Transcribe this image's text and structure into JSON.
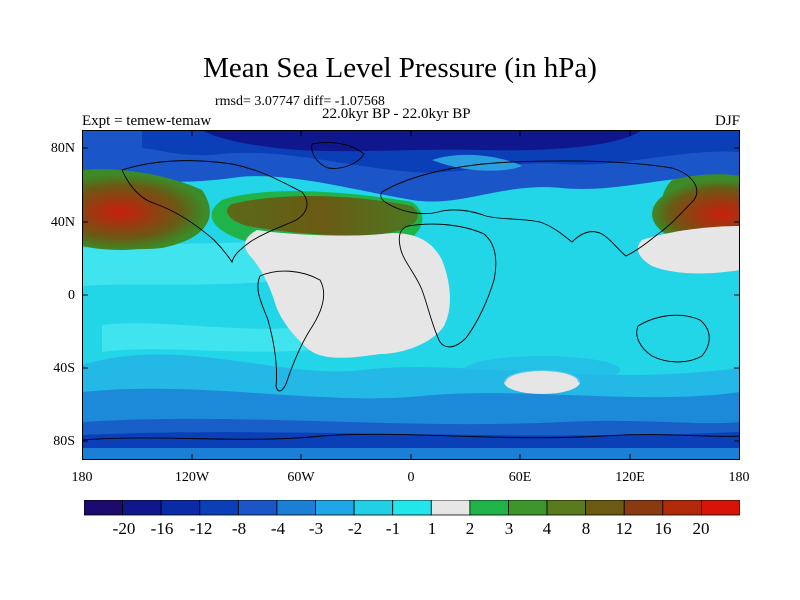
{
  "title": "Mean Sea Level Pressure (in hPa)",
  "stats": "rmsd= 3.07747 diff= -1.07568",
  "period": "22.0kyr BP - 22.0kyr BP",
  "experiment": "Expt = temew-temaw",
  "season": "DJF",
  "axes": {
    "lat_ticks": [
      "80N",
      "40N",
      "0",
      "40S",
      "80S"
    ],
    "lon_ticks": [
      "180",
      "120W",
      "60W",
      "0",
      "60E",
      "120E",
      "180"
    ]
  },
  "colorbar": {
    "labels": [
      "-20",
      "-16",
      "-12",
      "-8",
      "-4",
      "-3",
      "-2",
      "-1",
      "1",
      "2",
      "3",
      "4",
      "8",
      "12",
      "16",
      "20"
    ],
    "colors": [
      "#1c0a6e",
      "#10178c",
      "#0a2aa6",
      "#0a3fb8",
      "#1a56c8",
      "#1c7fd6",
      "#1fa6e6",
      "#23cfe6",
      "#22e6ec",
      "#e6e6e6",
      "#20b34a",
      "#3c962c",
      "#5a7a1e",
      "#6a5a14",
      "#8a3a10",
      "#b02a0a",
      "#d8140a"
    ]
  },
  "chart_data": {
    "type": "heatmap",
    "title": "Mean Sea Level Pressure (in hPa)",
    "subtitle": "22.0kyr BP - 22.0kyr BP",
    "variable": "MSLP difference",
    "units": "hPa",
    "contour_levels": [
      -20,
      -16,
      -12,
      -8,
      -4,
      -3,
      -2,
      -1,
      1,
      2,
      3,
      4,
      8,
      12,
      16,
      20
    ],
    "xlim": [
      -180,
      180
    ],
    "ylim": [
      -90,
      90
    ],
    "rmsd": 3.07747,
    "diff": -1.07568
  }
}
